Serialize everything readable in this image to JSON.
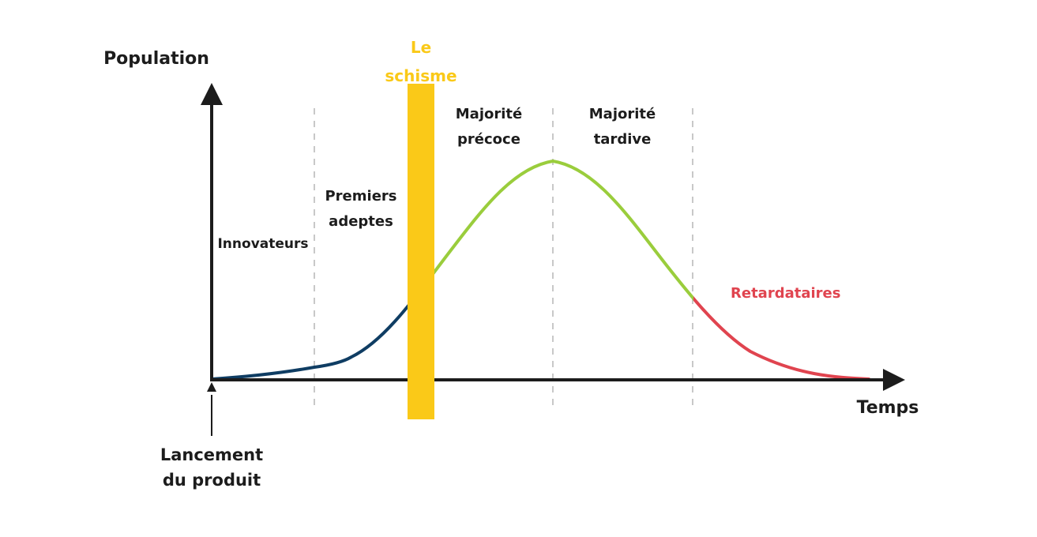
{
  "axes": {
    "y_title": "Population",
    "x_title": "Temps"
  },
  "origin_label": [
    "Lancement",
    "du produit"
  ],
  "chasm": {
    "label": [
      "Le",
      "schisme"
    ],
    "color": "#FAC918"
  },
  "segments": {
    "innovators": "Innovateurs",
    "early_adopters": [
      "Premiers",
      "adeptes"
    ],
    "early_majority": [
      "Majorité",
      "précoce"
    ],
    "late_majority": [
      "Majorité",
      "tardive"
    ],
    "laggards": "Retardataires"
  },
  "colors": {
    "axis": "#1c1c1c",
    "divider": "#c8c8c8",
    "curve_early": "#0F3D63",
    "curve_majority": "#9ACD3C",
    "curve_laggards": "#E0444F",
    "chasm": "#FAC918"
  }
}
